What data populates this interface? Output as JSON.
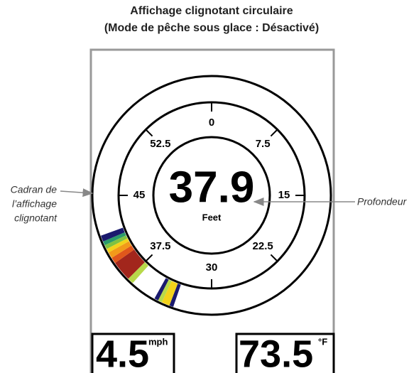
{
  "header": {
    "title_line1": "Affichage clignotant circulaire",
    "title_line2": "(Mode de pêche sous glace : Désactivé)"
  },
  "callouts": {
    "dial": [
      "Cadran de",
      "l’affichage",
      "clignotant"
    ],
    "depth": "Profondeur"
  },
  "dial_labels": [
    "0",
    "7.5",
    "15",
    "22.5",
    "30",
    "37.5",
    "45",
    "52.5"
  ],
  "depth": {
    "value": "37.9",
    "unit": "Feet"
  },
  "speed": {
    "value": "4.5",
    "unit": "mph"
  },
  "temperature": {
    "value": "73.5",
    "unit": "°F"
  }
}
